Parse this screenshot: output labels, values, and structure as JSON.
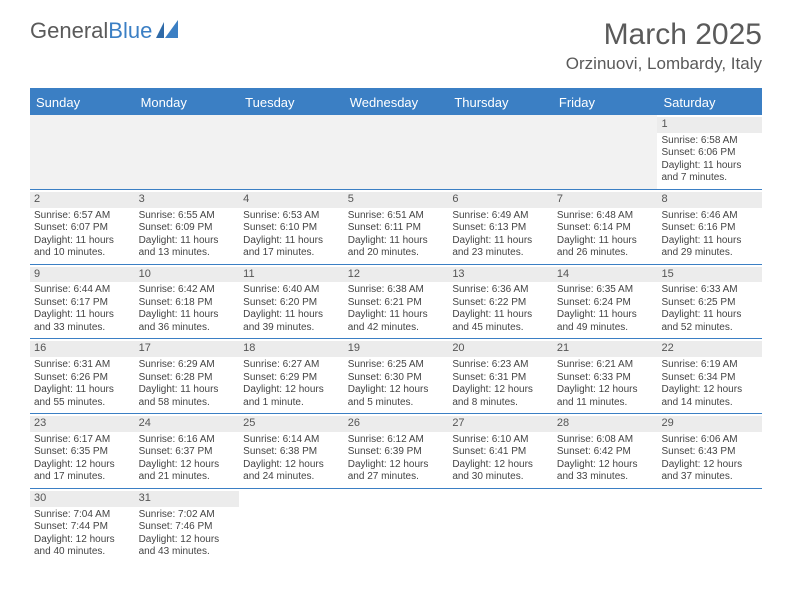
{
  "logo": {
    "text1": "General",
    "text2": "Blue"
  },
  "title": "March 2025",
  "location": "Orzinuovi, Lombardy, Italy",
  "colors": {
    "accent": "#3b7fc4",
    "header_text": "#ffffff",
    "body_text": "#444444",
    "title_text": "#5a5a5a",
    "daynum_bg": "#ececec",
    "empty_bg": "#f2f2f2",
    "border": "#3b7fc4"
  },
  "day_names": [
    "Sunday",
    "Monday",
    "Tuesday",
    "Wednesday",
    "Thursday",
    "Friday",
    "Saturday"
  ],
  "weeks": [
    [
      null,
      null,
      null,
      null,
      null,
      null,
      {
        "n": "1",
        "sr": "Sunrise: 6:58 AM",
        "ss": "Sunset: 6:06 PM",
        "dl": "Daylight: 11 hours and 7 minutes."
      }
    ],
    [
      {
        "n": "2",
        "sr": "Sunrise: 6:57 AM",
        "ss": "Sunset: 6:07 PM",
        "dl": "Daylight: 11 hours and 10 minutes."
      },
      {
        "n": "3",
        "sr": "Sunrise: 6:55 AM",
        "ss": "Sunset: 6:09 PM",
        "dl": "Daylight: 11 hours and 13 minutes."
      },
      {
        "n": "4",
        "sr": "Sunrise: 6:53 AM",
        "ss": "Sunset: 6:10 PM",
        "dl": "Daylight: 11 hours and 17 minutes."
      },
      {
        "n": "5",
        "sr": "Sunrise: 6:51 AM",
        "ss": "Sunset: 6:11 PM",
        "dl": "Daylight: 11 hours and 20 minutes."
      },
      {
        "n": "6",
        "sr": "Sunrise: 6:49 AM",
        "ss": "Sunset: 6:13 PM",
        "dl": "Daylight: 11 hours and 23 minutes."
      },
      {
        "n": "7",
        "sr": "Sunrise: 6:48 AM",
        "ss": "Sunset: 6:14 PM",
        "dl": "Daylight: 11 hours and 26 minutes."
      },
      {
        "n": "8",
        "sr": "Sunrise: 6:46 AM",
        "ss": "Sunset: 6:16 PM",
        "dl": "Daylight: 11 hours and 29 minutes."
      }
    ],
    [
      {
        "n": "9",
        "sr": "Sunrise: 6:44 AM",
        "ss": "Sunset: 6:17 PM",
        "dl": "Daylight: 11 hours and 33 minutes."
      },
      {
        "n": "10",
        "sr": "Sunrise: 6:42 AM",
        "ss": "Sunset: 6:18 PM",
        "dl": "Daylight: 11 hours and 36 minutes."
      },
      {
        "n": "11",
        "sr": "Sunrise: 6:40 AM",
        "ss": "Sunset: 6:20 PM",
        "dl": "Daylight: 11 hours and 39 minutes."
      },
      {
        "n": "12",
        "sr": "Sunrise: 6:38 AM",
        "ss": "Sunset: 6:21 PM",
        "dl": "Daylight: 11 hours and 42 minutes."
      },
      {
        "n": "13",
        "sr": "Sunrise: 6:36 AM",
        "ss": "Sunset: 6:22 PM",
        "dl": "Daylight: 11 hours and 45 minutes."
      },
      {
        "n": "14",
        "sr": "Sunrise: 6:35 AM",
        "ss": "Sunset: 6:24 PM",
        "dl": "Daylight: 11 hours and 49 minutes."
      },
      {
        "n": "15",
        "sr": "Sunrise: 6:33 AM",
        "ss": "Sunset: 6:25 PM",
        "dl": "Daylight: 11 hours and 52 minutes."
      }
    ],
    [
      {
        "n": "16",
        "sr": "Sunrise: 6:31 AM",
        "ss": "Sunset: 6:26 PM",
        "dl": "Daylight: 11 hours and 55 minutes."
      },
      {
        "n": "17",
        "sr": "Sunrise: 6:29 AM",
        "ss": "Sunset: 6:28 PM",
        "dl": "Daylight: 11 hours and 58 minutes."
      },
      {
        "n": "18",
        "sr": "Sunrise: 6:27 AM",
        "ss": "Sunset: 6:29 PM",
        "dl": "Daylight: 12 hours and 1 minute."
      },
      {
        "n": "19",
        "sr": "Sunrise: 6:25 AM",
        "ss": "Sunset: 6:30 PM",
        "dl": "Daylight: 12 hours and 5 minutes."
      },
      {
        "n": "20",
        "sr": "Sunrise: 6:23 AM",
        "ss": "Sunset: 6:31 PM",
        "dl": "Daylight: 12 hours and 8 minutes."
      },
      {
        "n": "21",
        "sr": "Sunrise: 6:21 AM",
        "ss": "Sunset: 6:33 PM",
        "dl": "Daylight: 12 hours and 11 minutes."
      },
      {
        "n": "22",
        "sr": "Sunrise: 6:19 AM",
        "ss": "Sunset: 6:34 PM",
        "dl": "Daylight: 12 hours and 14 minutes."
      }
    ],
    [
      {
        "n": "23",
        "sr": "Sunrise: 6:17 AM",
        "ss": "Sunset: 6:35 PM",
        "dl": "Daylight: 12 hours and 17 minutes."
      },
      {
        "n": "24",
        "sr": "Sunrise: 6:16 AM",
        "ss": "Sunset: 6:37 PM",
        "dl": "Daylight: 12 hours and 21 minutes."
      },
      {
        "n": "25",
        "sr": "Sunrise: 6:14 AM",
        "ss": "Sunset: 6:38 PM",
        "dl": "Daylight: 12 hours and 24 minutes."
      },
      {
        "n": "26",
        "sr": "Sunrise: 6:12 AM",
        "ss": "Sunset: 6:39 PM",
        "dl": "Daylight: 12 hours and 27 minutes."
      },
      {
        "n": "27",
        "sr": "Sunrise: 6:10 AM",
        "ss": "Sunset: 6:41 PM",
        "dl": "Daylight: 12 hours and 30 minutes."
      },
      {
        "n": "28",
        "sr": "Sunrise: 6:08 AM",
        "ss": "Sunset: 6:42 PM",
        "dl": "Daylight: 12 hours and 33 minutes."
      },
      {
        "n": "29",
        "sr": "Sunrise: 6:06 AM",
        "ss": "Sunset: 6:43 PM",
        "dl": "Daylight: 12 hours and 37 minutes."
      }
    ],
    [
      {
        "n": "30",
        "sr": "Sunrise: 7:04 AM",
        "ss": "Sunset: 7:44 PM",
        "dl": "Daylight: 12 hours and 40 minutes."
      },
      {
        "n": "31",
        "sr": "Sunrise: 7:02 AM",
        "ss": "Sunset: 7:46 PM",
        "dl": "Daylight: 12 hours and 43 minutes."
      },
      null,
      null,
      null,
      null,
      null
    ]
  ]
}
